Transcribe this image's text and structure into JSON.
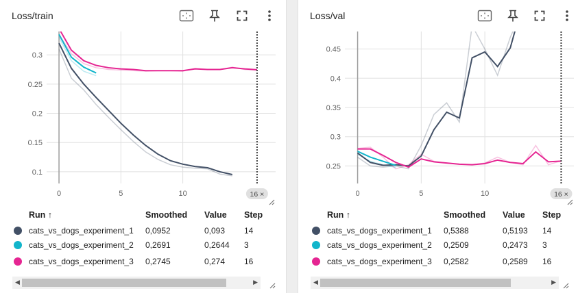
{
  "panels": [
    {
      "title": "Loss/train",
      "step_badge": "16 ×",
      "columns": {
        "run": "Run ↑",
        "smoothed": "Smoothed",
        "value": "Value",
        "step": "Step"
      },
      "rows": [
        {
          "run": "cats_vs_dogs_experiment_1",
          "smoothed": "0,0952",
          "value": "0,093",
          "step": "14",
          "color": "#425066"
        },
        {
          "run": "cats_vs_dogs_experiment_2",
          "smoothed": "0,2691",
          "value": "0,2644",
          "step": "3",
          "color": "#12b5cb"
        },
        {
          "run": "cats_vs_dogs_experiment_3",
          "smoothed": "0,2745",
          "value": "0,274",
          "step": "16",
          "color": "#e52592"
        }
      ],
      "chart_data": {
        "type": "line",
        "title": "Loss/train",
        "xlabel": "",
        "ylabel": "",
        "xlim": [
          -1,
          17.5
        ],
        "ylim": [
          0.08,
          0.34
        ],
        "xticks": [
          0,
          5,
          10
        ],
        "xtick_labels": [
          "0",
          "5",
          "10"
        ],
        "yticks": [
          0.1,
          0.15,
          0.2,
          0.25,
          0.3
        ],
        "ytick_labels": [
          "0.1",
          "0.15",
          "0.2",
          "0.25",
          "0.3"
        ],
        "marker_step": 16,
        "series": [
          {
            "name": "cats_vs_dogs_experiment_1",
            "color": "#425066",
            "x": [
              0,
              1,
              2,
              3,
              4,
              5,
              6,
              7,
              8,
              9,
              10,
              11,
              12,
              13,
              14
            ],
            "raw": [
              0.31,
              0.26,
              0.24,
              0.215,
              0.193,
              0.172,
              0.152,
              0.134,
              0.121,
              0.112,
              0.108,
              0.106,
              0.105,
              0.096,
              0.093
            ],
            "smoothed": [
              0.32,
              0.277,
              0.25,
              0.227,
              0.205,
              0.183,
              0.163,
              0.145,
              0.13,
              0.119,
              0.113,
              0.109,
              0.107,
              0.1,
              0.0952
            ]
          },
          {
            "name": "cats_vs_dogs_experiment_2",
            "color": "#12b5cb",
            "x": [
              0,
              1,
              2,
              3
            ],
            "raw": [
              0.33,
              0.29,
              0.272,
              0.2644
            ],
            "smoothed": [
              0.335,
              0.296,
              0.279,
              0.2691
            ]
          },
          {
            "name": "cats_vs_dogs_experiment_3",
            "color": "#e52592",
            "x": [
              0,
              1,
              2,
              3,
              4,
              5,
              6,
              7,
              8,
              9,
              10,
              11,
              12,
              13,
              14,
              15,
              16
            ],
            "raw": [
              0.335,
              0.302,
              0.285,
              0.278,
              0.275,
              0.274,
              0.273,
              0.272,
              0.273,
              0.273,
              0.272,
              0.277,
              0.275,
              0.275,
              0.279,
              0.275,
              0.274
            ],
            "smoothed": [
              0.345,
              0.308,
              0.29,
              0.282,
              0.278,
              0.276,
              0.275,
              0.273,
              0.273,
              0.273,
              0.273,
              0.276,
              0.275,
              0.275,
              0.278,
              0.276,
              0.2745
            ]
          }
        ]
      }
    },
    {
      "title": "Loss/val",
      "step_badge": "16 ×",
      "columns": {
        "run": "Run ↑",
        "smoothed": "Smoothed",
        "value": "Value",
        "step": "Step"
      },
      "rows": [
        {
          "run": "cats_vs_dogs_experiment_1",
          "smoothed": "0,5388",
          "value": "0,5193",
          "step": "14",
          "color": "#425066"
        },
        {
          "run": "cats_vs_dogs_experiment_2",
          "smoothed": "0,2509",
          "value": "0,2473",
          "step": "3",
          "color": "#12b5cb"
        },
        {
          "run": "cats_vs_dogs_experiment_3",
          "smoothed": "0,2582",
          "value": "0,2589",
          "step": "16",
          "color": "#e52592"
        }
      ],
      "chart_data": {
        "type": "line",
        "title": "Loss/val",
        "xlabel": "",
        "ylabel": "",
        "xlim": [
          -1,
          17
        ],
        "ylim": [
          0.22,
          0.48
        ],
        "xticks": [
          0,
          5,
          10
        ],
        "xtick_labels": [
          "0",
          "5",
          "10"
        ],
        "yticks": [
          0.25,
          0.3,
          0.35,
          0.4,
          0.45
        ],
        "ytick_labels": [
          "0.25",
          "0.3",
          "0.35",
          "0.4",
          "0.45"
        ],
        "marker_step": 16,
        "series": [
          {
            "name": "cats_vs_dogs_experiment_1",
            "color": "#425066",
            "x": [
              0,
              1,
              2,
              3,
              4,
              5,
              6,
              7,
              8,
              9,
              10,
              11,
              12,
              13,
              14
            ],
            "raw": [
              0.265,
              0.25,
              0.248,
              0.25,
              0.245,
              0.285,
              0.338,
              0.358,
              0.325,
              0.49,
              0.45,
              0.405,
              0.47,
              0.52,
              0.5193
            ],
            "smoothed": [
              0.272,
              0.256,
              0.251,
              0.252,
              0.25,
              0.267,
              0.312,
              0.342,
              0.332,
              0.435,
              0.445,
              0.42,
              0.452,
              0.53,
              0.5388
            ]
          },
          {
            "name": "cats_vs_dogs_experiment_2",
            "color": "#12b5cb",
            "x": [
              0,
              1,
              2,
              3
            ],
            "raw": [
              0.27,
              0.258,
              0.252,
              0.2473
            ],
            "smoothed": [
              0.275,
              0.265,
              0.258,
              0.2509
            ]
          },
          {
            "name": "cats_vs_dogs_experiment_3",
            "color": "#e52592",
            "x": [
              0,
              1,
              2,
              3,
              4,
              5,
              6,
              7,
              8,
              9,
              10,
              11,
              12,
              13,
              14,
              15,
              16
            ],
            "raw": [
              0.28,
              0.282,
              0.265,
              0.245,
              0.252,
              0.27,
              0.258,
              0.255,
              0.253,
              0.252,
              0.255,
              0.265,
              0.256,
              0.252,
              0.285,
              0.252,
              0.2589
            ],
            "smoothed": [
              0.279,
              0.279,
              0.268,
              0.256,
              0.248,
              0.262,
              0.257,
              0.255,
              0.253,
              0.252,
              0.254,
              0.26,
              0.256,
              0.254,
              0.274,
              0.257,
              0.2582
            ]
          }
        ]
      }
    }
  ]
}
